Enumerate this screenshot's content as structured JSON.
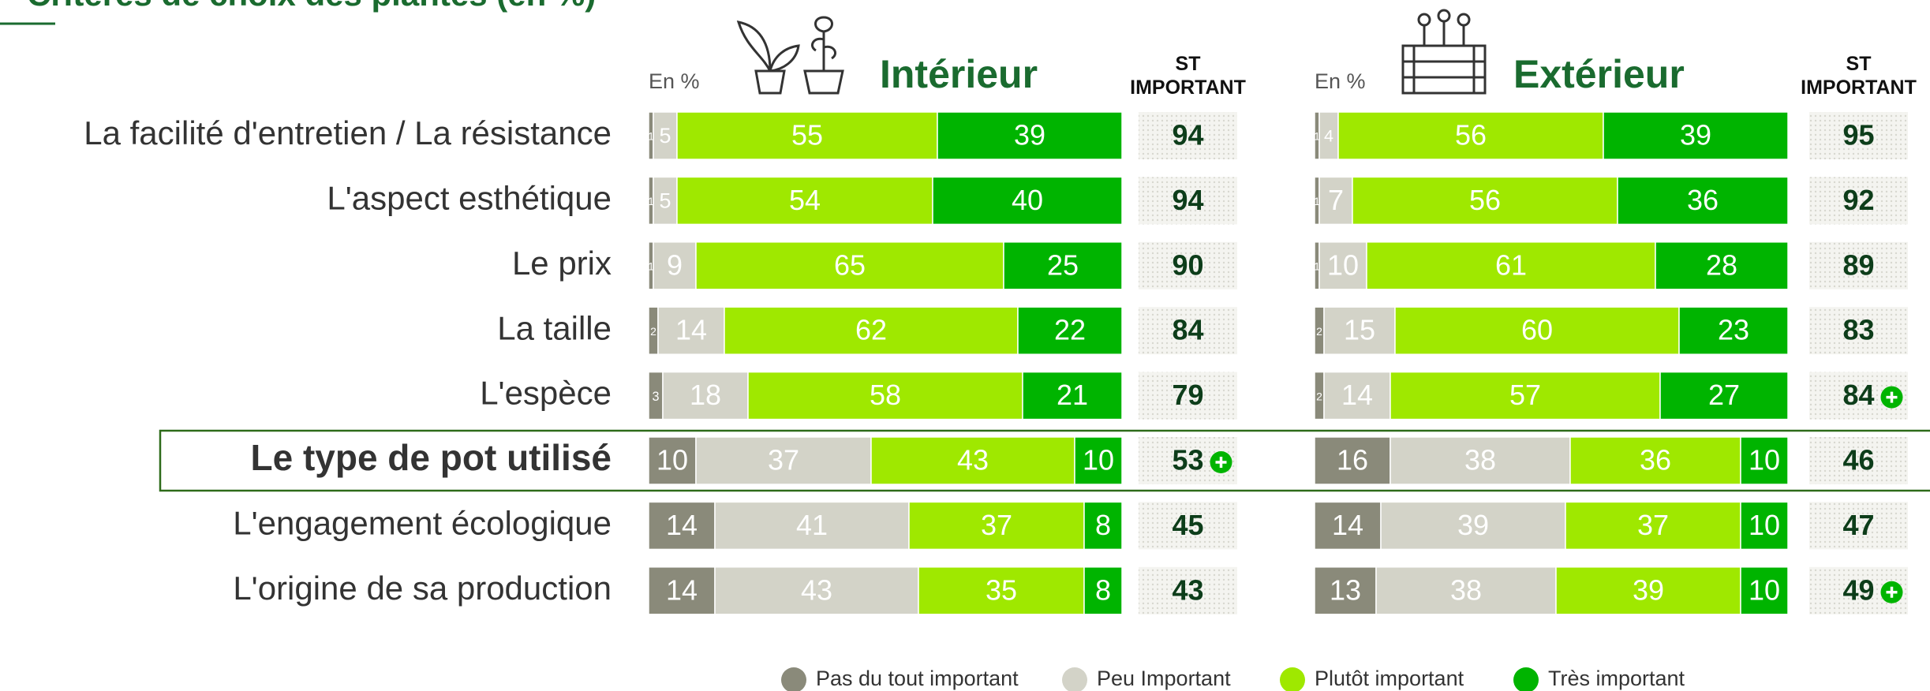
{
  "chart_data": {
    "type": "bar",
    "stacked": true,
    "title": "Critères de choix des plantes (en %)",
    "categories": [
      "La facilité d'entretien / La résistance",
      "L'aspect esthétique",
      "Le prix",
      "La taille",
      "L'espèce",
      "Le type de pot utilisé",
      "L'engagement écologique",
      "L'origine de sa production"
    ],
    "highlight": 5,
    "xlim": [
      0,
      100
    ],
    "series": [
      {
        "name": "Pas du tout important",
        "color": "#8a8a7a"
      },
      {
        "name": "Peu Important",
        "color": "#d3d3c8"
      },
      {
        "name": "Plutôt important",
        "color": "#9fe800"
      },
      {
        "name": "Très important",
        "color": "#00b400"
      }
    ],
    "panels": [
      {
        "title": "Intérieur",
        "unit": "En %",
        "st_label": "ST IMPORTANT",
        "series": [
          {
            "values": [
              1,
              1,
              1,
              2,
              3,
              10,
              14,
              14
            ]
          },
          {
            "values": [
              5,
              5,
              9,
              14,
              18,
              37,
              41,
              43
            ]
          },
          {
            "values": [
              55,
              54,
              65,
              62,
              58,
              43,
              37,
              35
            ]
          },
          {
            "values": [
              39,
              40,
              25,
              22,
              21,
              10,
              8,
              8
            ]
          }
        ],
        "st_values": [
          94,
          94,
          90,
          84,
          79,
          53,
          45,
          43
        ],
        "significant": [
          false,
          false,
          false,
          false,
          false,
          true,
          false,
          false
        ]
      },
      {
        "title": "Extérieur",
        "unit": "En %",
        "st_label": "ST IMPORTANT",
        "series": [
          {
            "values": [
              1,
              1,
              1,
              2,
              2,
              16,
              14,
              13
            ]
          },
          {
            "values": [
              4,
              7,
              10,
              15,
              14,
              38,
              39,
              38
            ]
          },
          {
            "values": [
              56,
              56,
              61,
              60,
              57,
              36,
              37,
              39
            ]
          },
          {
            "values": [
              39,
              36,
              28,
              23,
              27,
              10,
              10,
              10
            ]
          }
        ],
        "st_values": [
          95,
          92,
          89,
          83,
          84,
          46,
          47,
          49
        ],
        "significant": [
          false,
          false,
          false,
          false,
          true,
          false,
          false,
          true
        ]
      }
    ]
  }
}
